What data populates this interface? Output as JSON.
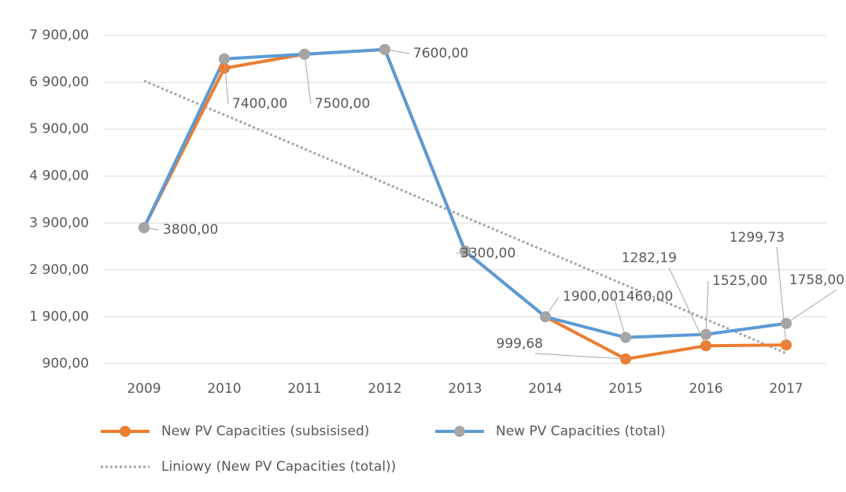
{
  "chart_data": {
    "type": "line",
    "categories": [
      "2009",
      "2010",
      "2011",
      "2012",
      "2013",
      "2014",
      "2015",
      "2016",
      "2017"
    ],
    "series": [
      {
        "name": "New PV Capacities (subsisised)",
        "color": "#ed7d31",
        "marker_color": "#ed7d31",
        "values": [
          3800,
          7200,
          7500,
          7600,
          3300,
          1900,
          999.68,
          1282.19,
          1299.73
        ],
        "value_labels": [
          null,
          null,
          null,
          null,
          null,
          null,
          "999,68",
          "1282,19",
          "1299,73"
        ]
      },
      {
        "name": "New PV Capacities (total)",
        "color": "#5b9bd5",
        "marker_color": "#a5a5a5",
        "values": [
          3800,
          7400,
          7500,
          7600,
          3300,
          1900,
          1460,
          1525,
          1758
        ],
        "value_labels": [
          "3800,00",
          "7400,00",
          "7500,00",
          "7600,00",
          "3300,00",
          "1900,00",
          "1460,00",
          "1525,00",
          "1758,00"
        ]
      },
      {
        "name": "Liniowy (New PV Capacities (total))",
        "color": "#a5a5a5",
        "trendline": "linear",
        "trendline_of_series": 1
      }
    ],
    "ylim": [
      900,
      7900
    ],
    "yticks": [
      {
        "value": 900,
        "label": "900,00"
      },
      {
        "value": 1900,
        "label": "1 900,00"
      },
      {
        "value": 2900,
        "label": "2 900,00"
      },
      {
        "value": 3900,
        "label": "3 900,00"
      },
      {
        "value": 4900,
        "label": "4 900,00"
      },
      {
        "value": 5900,
        "label": "5 900,00"
      },
      {
        "value": 6900,
        "label": "6 900,00"
      },
      {
        "value": 7900,
        "label": "7 900,00"
      }
    ],
    "grid": true,
    "legend": "bottom"
  }
}
